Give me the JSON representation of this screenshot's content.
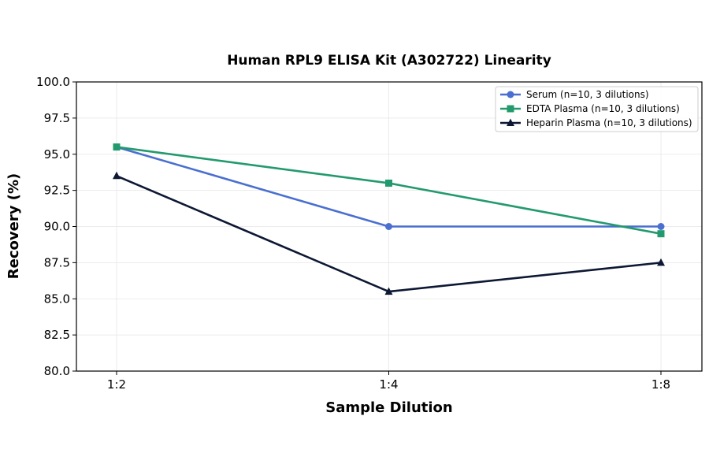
{
  "chart_data": {
    "type": "line",
    "title": "Human RPL9 ELISA Kit (A302722) Linearity",
    "xlabel": "Sample Dilution",
    "ylabel": "Recovery (%)",
    "categories": [
      "1:2",
      "1:4",
      "1:8"
    ],
    "ylim": [
      80.0,
      100.0
    ],
    "yticks": [
      "80.0",
      "82.5",
      "85.0",
      "87.5",
      "90.0",
      "92.5",
      "95.0",
      "97.5",
      "100.0"
    ],
    "grid": true,
    "legend_position": "top-right",
    "series": [
      {
        "name": "Serum (n=10, 3 dilutions)",
        "values": [
          95.5,
          90.0,
          90.0
        ],
        "color": "#4a6fd0",
        "marker": "circle"
      },
      {
        "name": "EDTA Plasma (n=10, 3 dilutions)",
        "values": [
          95.5,
          93.0,
          89.5
        ],
        "color": "#239a6e",
        "marker": "square"
      },
      {
        "name": "Heparin Plasma (n=10, 3 dilutions)",
        "values": [
          93.5,
          85.5,
          87.5
        ],
        "color": "#0d1833",
        "marker": "triangle"
      }
    ]
  }
}
